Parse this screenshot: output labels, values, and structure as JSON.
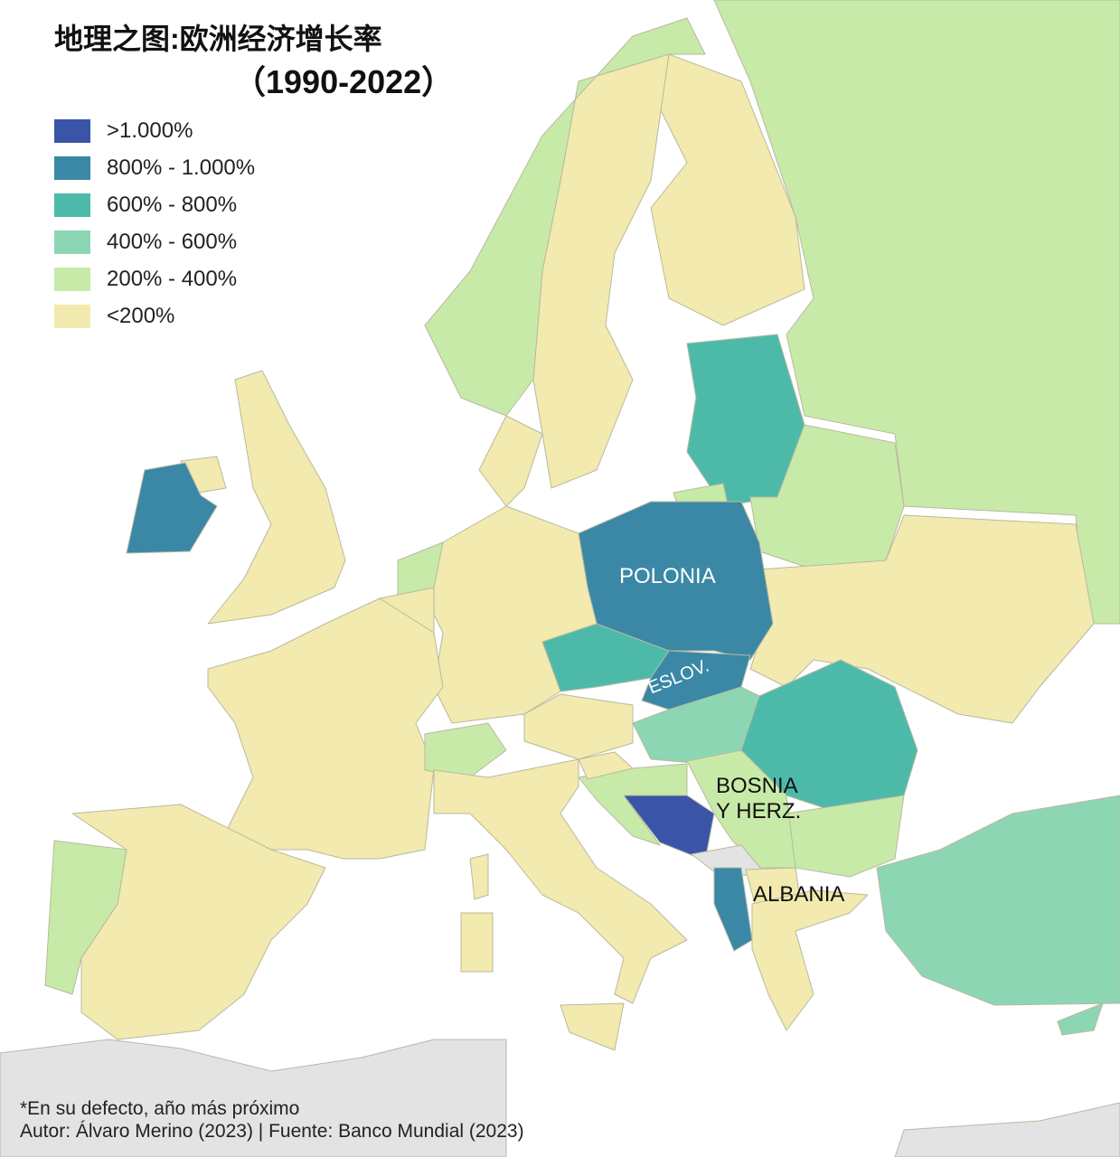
{
  "title": "地理之图:欧洲经济增长率",
  "subtitle": "（1990-2022）",
  "legend": [
    {
      "label": ">1.000%",
      "color": "#3a55a8"
    },
    {
      "label": "800% - 1.000%",
      "color": "#3a88a5"
    },
    {
      "label": "600% - 800%",
      "color": "#4dbaa9"
    },
    {
      "label": "400% - 600%",
      "color": "#8dd6b4"
    },
    {
      "label": "200% - 400%",
      "color": "#c8eaa8"
    },
    {
      "label": "<200%",
      "color": "#f2eaae"
    }
  ],
  "labels": {
    "polonia": "POLONIA",
    "eslov": "ESLOV.",
    "bosnia_1": "BOSNIA",
    "bosnia_2": "Y HERZ.",
    "albania": "ALBANIA"
  },
  "footer": {
    "note": "*En su defecto, año más próximo",
    "credit": "Autor: Álvaro Merino (2023) | Fuente: Banco Mundial (2023)"
  },
  "colors": {
    "no_data": "#e3e3e3",
    "sea": "#ffffff"
  }
}
